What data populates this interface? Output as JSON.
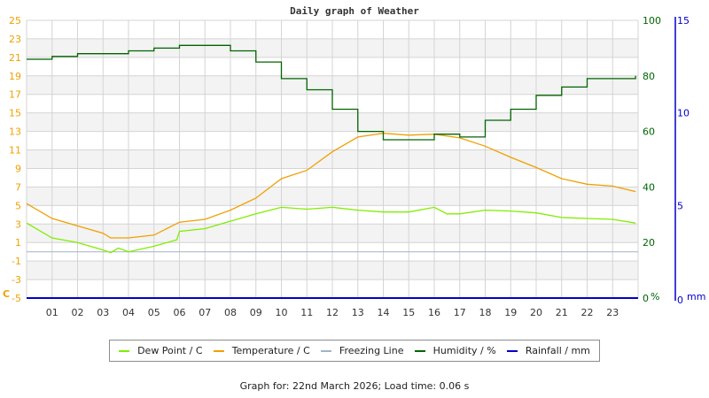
{
  "chart_data": {
    "type": "line",
    "title": "Daily graph of Weather",
    "xlabel": "",
    "x_ticks": [
      "01",
      "02",
      "03",
      "04",
      "05",
      "06",
      "07",
      "08",
      "09",
      "10",
      "11",
      "12",
      "13",
      "14",
      "15",
      "16",
      "17",
      "18",
      "19",
      "20",
      "21",
      "22",
      "23"
    ],
    "xlim": [
      0,
      24
    ],
    "axes": {
      "left": {
        "label": "C",
        "ticks": [
          25,
          23,
          21,
          19,
          17,
          15,
          13,
          11,
          9,
          7,
          5,
          3,
          1,
          -1,
          -3,
          -5
        ],
        "ylim": [
          -5,
          25
        ],
        "color": "#f0a000"
      },
      "right_humidity": {
        "label": "%",
        "ticks": [
          100,
          80,
          60,
          40,
          20,
          0
        ],
        "ylim": [
          0,
          100
        ],
        "color": "#006400"
      },
      "right_rainfall": {
        "label": "mm",
        "ticks": [
          15,
          10,
          5,
          0
        ],
        "ylim": [
          0,
          15
        ],
        "color": "#0000cc"
      }
    },
    "grid": true,
    "legend_position": "bottom",
    "series": [
      {
        "name": "Dew Point / C",
        "color": "#80ee00",
        "axis": "left",
        "x": [
          0,
          1,
          2,
          3,
          3.3,
          3.6,
          4,
          5,
          5.9,
          6,
          7,
          8,
          9,
          10,
          11,
          12,
          13,
          14,
          15,
          16,
          16.5,
          17,
          18,
          19,
          20,
          21,
          22,
          23,
          23.9
        ],
        "values": [
          3.1,
          1.5,
          1.0,
          0.2,
          -0.1,
          0.4,
          0.0,
          0.6,
          1.3,
          2.2,
          2.5,
          3.3,
          4.1,
          4.8,
          4.6,
          4.8,
          4.5,
          4.3,
          4.3,
          4.8,
          4.1,
          4.1,
          4.5,
          4.4,
          4.2,
          3.7,
          3.6,
          3.5,
          3.1
        ]
      },
      {
        "name": "Temperature / C",
        "color": "#f0a000",
        "axis": "left",
        "x": [
          0,
          1,
          2,
          3,
          3.3,
          4,
          5,
          6,
          7,
          8,
          9,
          10,
          11,
          12,
          13,
          14,
          15,
          16,
          17,
          18,
          19,
          20,
          21,
          22,
          23,
          23.9
        ],
        "values": [
          5.2,
          3.6,
          2.8,
          2.0,
          1.5,
          1.5,
          1.8,
          3.2,
          3.5,
          4.5,
          5.8,
          7.9,
          8.8,
          10.8,
          12.4,
          12.8,
          12.6,
          12.7,
          12.3,
          11.4,
          10.2,
          9.1,
          7.9,
          7.3,
          7.1,
          6.5
        ]
      },
      {
        "name": "Freezing Line",
        "color": "#a0b4c8",
        "axis": "left",
        "x": [
          0,
          24
        ],
        "values": [
          0,
          0
        ]
      },
      {
        "name": "Humidity / %",
        "color": "#006400",
        "axis": "right_humidity",
        "x": [
          0,
          1,
          2,
          3,
          4,
          5,
          6,
          7,
          8,
          9,
          10,
          11,
          12,
          13,
          14,
          15,
          16,
          17,
          18,
          19,
          20,
          21,
          22,
          23,
          23.9
        ],
        "values": [
          86,
          87,
          88,
          88,
          89,
          90,
          91,
          91,
          89,
          85,
          79,
          75,
          68,
          60,
          57,
          57,
          59,
          58,
          64,
          68,
          73,
          76,
          79,
          79,
          80
        ]
      },
      {
        "name": "Rainfall / mm",
        "color": "#0000cc",
        "axis": "right_rainfall",
        "x": [
          0,
          24
        ],
        "values": [
          0,
          0
        ]
      }
    ]
  },
  "legend": [
    {
      "label": "Dew Point / C",
      "color": "#80ee00"
    },
    {
      "label": "Temperature / C",
      "color": "#f0a000"
    },
    {
      "label": "Freezing Line",
      "color": "#a0b4c8"
    },
    {
      "label": "Humidity / %",
      "color": "#006400"
    },
    {
      "label": "Rainfall / mm",
      "color": "#0000cc"
    }
  ],
  "footer": "Graph for: 22nd March 2026; Load time: 0.06 s"
}
